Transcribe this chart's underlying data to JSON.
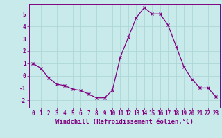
{
  "x": [
    0,
    1,
    2,
    3,
    4,
    5,
    6,
    7,
    8,
    9,
    10,
    11,
    12,
    13,
    14,
    15,
    16,
    17,
    18,
    19,
    20,
    21,
    22,
    23
  ],
  "y": [
    1.0,
    0.6,
    -0.2,
    -0.7,
    -0.8,
    -1.1,
    -1.2,
    -1.5,
    -1.8,
    -1.8,
    -1.2,
    1.5,
    3.1,
    4.7,
    5.5,
    5.0,
    5.0,
    4.1,
    2.4,
    0.7,
    -0.3,
    -1.0,
    -1.0,
    -1.7
  ],
  "line_color": "#800080",
  "marker": "x",
  "marker_size": 3,
  "marker_lw": 0.8,
  "line_width": 0.9,
  "bg_color": "#c8eaea",
  "grid_color": "#aed6d6",
  "xlabel": "Windchill (Refroidissement éolien,°C)",
  "xlabel_color": "#800080",
  "tick_color": "#800080",
  "spine_color": "#800080",
  "xlim": [
    -0.5,
    23.5
  ],
  "ylim": [
    -2.6,
    5.8
  ],
  "xticks": [
    0,
    1,
    2,
    3,
    4,
    5,
    6,
    7,
    8,
    9,
    10,
    11,
    12,
    13,
    14,
    15,
    16,
    17,
    18,
    19,
    20,
    21,
    22,
    23
  ],
  "yticks": [
    -2,
    -1,
    0,
    1,
    2,
    3,
    4,
    5
  ],
  "tick_fontsize": 5.5,
  "label_fontsize": 6.5
}
